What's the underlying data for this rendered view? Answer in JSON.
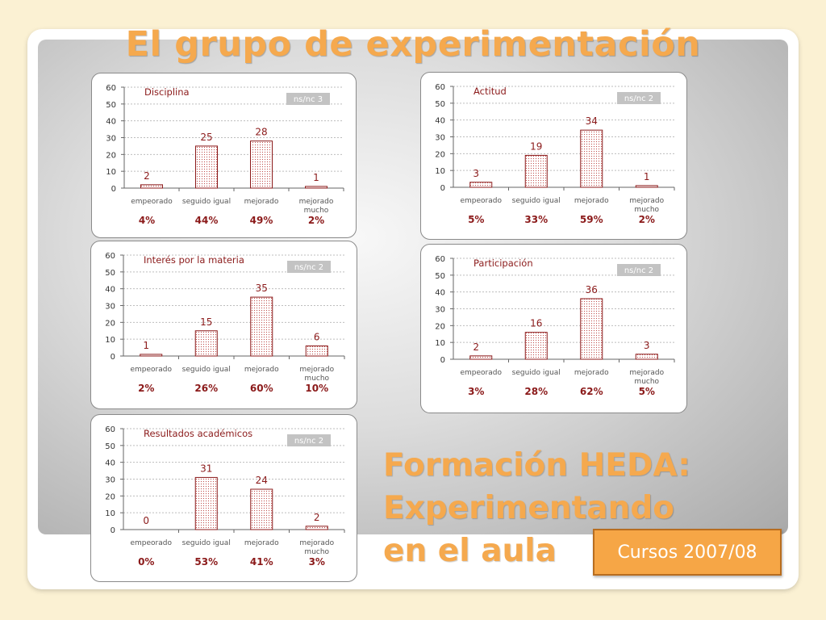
{
  "title": "El grupo de experimentación",
  "subtitle_lines": [
    "Formación HEDA:",
    "Experimentando",
    "en el aula"
  ],
  "badge": "Cursos 2007/08",
  "colors": {
    "title": "#f5a94e",
    "bar_border": "#8b1a1a",
    "bar_dots": "#c0504d",
    "badge": "#f6a646"
  },
  "chart_data": [
    {
      "type": "bar",
      "title": "Disciplina",
      "note": "ns/nc 3",
      "categories": [
        "empeorado",
        "seguido igual",
        "mejorado",
        "mejorado mucho"
      ],
      "values": [
        2,
        25,
        28,
        1
      ],
      "percentages": [
        "4%",
        "44%",
        "49%",
        "2%"
      ],
      "ylim": [
        0,
        60
      ],
      "yticks": [
        0,
        10,
        20,
        30,
        40,
        50,
        60
      ],
      "grid": true
    },
    {
      "type": "bar",
      "title": "Actitud",
      "note": "ns/nc 2",
      "categories": [
        "empeorado",
        "seguido igual",
        "mejorado",
        "mejorado mucho"
      ],
      "values": [
        3,
        19,
        34,
        1
      ],
      "percentages": [
        "5%",
        "33%",
        "59%",
        "2%"
      ],
      "ylim": [
        0,
        60
      ],
      "yticks": [
        0,
        10,
        20,
        30,
        40,
        50,
        60
      ],
      "grid": true
    },
    {
      "type": "bar",
      "title": "Interés por la materia",
      "note": "ns/nc 2",
      "categories": [
        "empeorado",
        "seguido igual",
        "mejorado",
        "mejorado mucho"
      ],
      "values": [
        1,
        15,
        35,
        6
      ],
      "percentages": [
        "2%",
        "26%",
        "60%",
        "10%"
      ],
      "ylim": [
        0,
        60
      ],
      "yticks": [
        0,
        10,
        20,
        30,
        40,
        50,
        60
      ],
      "grid": true
    },
    {
      "type": "bar",
      "title": "Participación",
      "note": "ns/nc 2",
      "categories": [
        "empeorado",
        "seguido igual",
        "mejorado",
        "mejorado mucho"
      ],
      "values": [
        2,
        16,
        36,
        3
      ],
      "percentages": [
        "3%",
        "28%",
        "62%",
        "5%"
      ],
      "ylim": [
        0,
        60
      ],
      "yticks": [
        0,
        10,
        20,
        30,
        40,
        50,
        60
      ],
      "grid": true
    },
    {
      "type": "bar",
      "title": "Resultados académicos",
      "note": "ns/nc 2",
      "categories": [
        "empeorado",
        "seguido igual",
        "mejorado",
        "mejorado mucho"
      ],
      "values": [
        0,
        31,
        24,
        2
      ],
      "percentages": [
        "0%",
        "53%",
        "41%",
        "3%"
      ],
      "ylim": [
        0,
        60
      ],
      "yticks": [
        0,
        10,
        20,
        30,
        40,
        50,
        60
      ],
      "grid": true
    }
  ]
}
